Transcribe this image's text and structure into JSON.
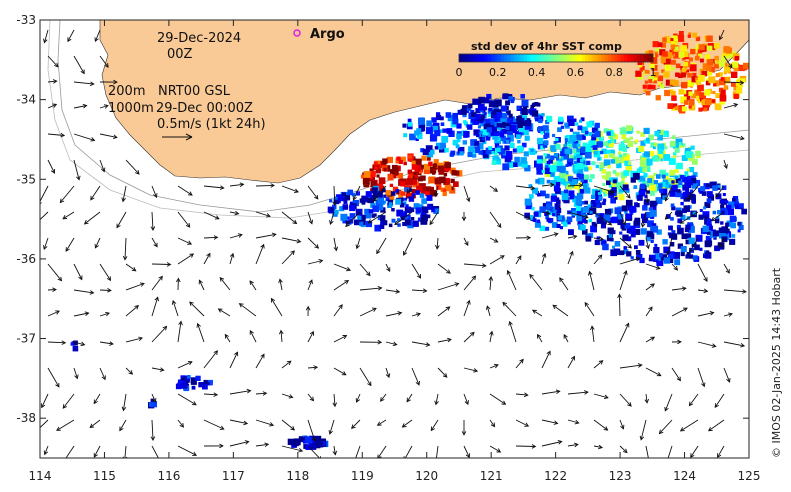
{
  "map": {
    "date_line1": "29-Dec-2024",
    "date_line2": "00Z",
    "depth_label_1": "200m",
    "depth_label_2": "1000m",
    "product_line1": "NRT00 GSL",
    "product_line2": "29-Dec 00:00Z",
    "scale_arrow_label": "0.5m/s (1kt 24h)",
    "argo_label": "Argo",
    "credit": "© IMOS 02-Jan-2025 14:43 Hobart",
    "lon_ticks": [
      "114",
      "115",
      "116",
      "117",
      "118",
      "119",
      "120",
      "121",
      "122",
      "123",
      "124",
      "125"
    ],
    "lat_ticks": [
      "-33",
      "-34",
      "-35",
      "-36",
      "-37",
      "-38"
    ],
    "lon_range": [
      114,
      125
    ],
    "lat_range": [
      -38.5,
      -33
    ],
    "colors": {
      "land": "#f9c996",
      "ocean": "#ffffff",
      "argo_marker": "#e020e0"
    }
  },
  "colorbar": {
    "title": "std dev of 4hr SST comp",
    "ticks": [
      "0",
      "0.2",
      "0.4",
      "0.6",
      "0.8",
      "1"
    ],
    "range": [
      0,
      1
    ],
    "colors": [
      "#00008f",
      "#0000ff",
      "#0080ff",
      "#00ffff",
      "#80ff80",
      "#ffff00",
      "#ff8000",
      "#ff0000",
      "#800000"
    ]
  }
}
